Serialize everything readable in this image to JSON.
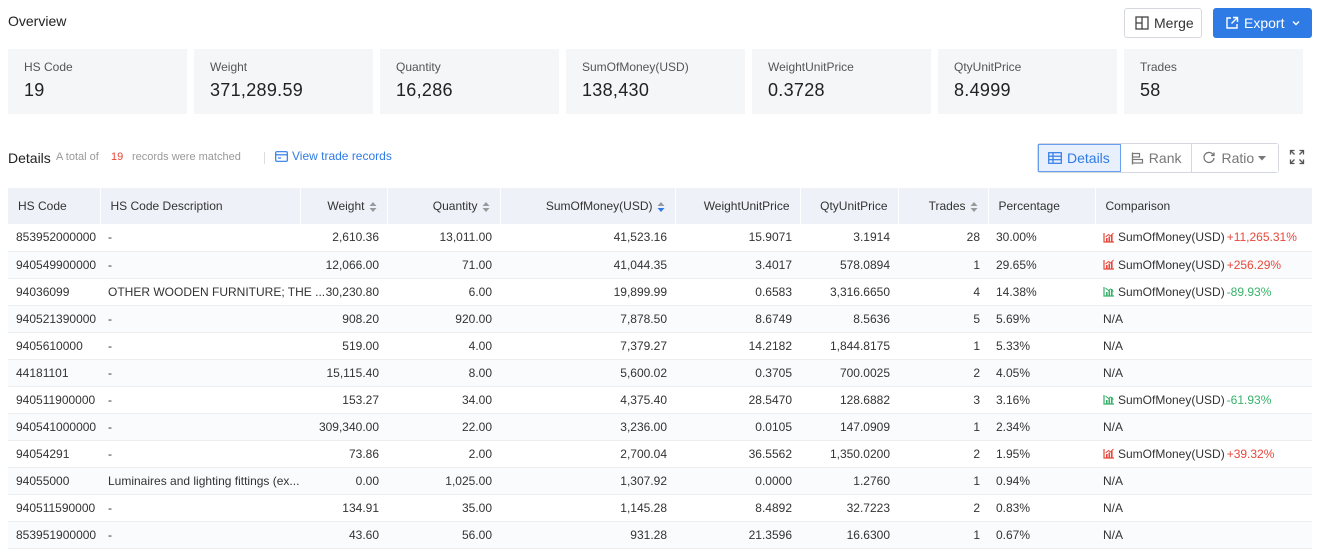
{
  "header": {
    "title": "Overview",
    "merge_label": "Merge",
    "export_label": "Export"
  },
  "stats": [
    {
      "label": "HS Code",
      "value": "19"
    },
    {
      "label": "Weight",
      "value": "371,289.59"
    },
    {
      "label": "Quantity",
      "value": "16,286"
    },
    {
      "label": "SumOfMoney(USD)",
      "value": "138,430"
    },
    {
      "label": "WeightUnitPrice",
      "value": "0.3728"
    },
    {
      "label": "QtyUnitPrice",
      "value": "8.4999"
    },
    {
      "label": "Trades",
      "value": "58"
    }
  ],
  "details": {
    "title": "Details",
    "total_prefix": "A total of",
    "count": "19",
    "total_suffix": "records were matched",
    "view_link": "View trade records",
    "views": [
      "Details",
      "Rank",
      "Ratio"
    ],
    "active_view": "Details"
  },
  "colors": {
    "accent": "#2f7be5",
    "up": "#e8473a",
    "down": "#38b26a",
    "header_bg": "#eef1f7"
  },
  "table": {
    "columns": [
      "HS Code",
      "HS Code Description",
      "Weight",
      "Quantity",
      "SumOfMoney(USD)",
      "WeightUnitPrice",
      "QtyUnitPrice",
      "Trades",
      "Percentage",
      "Comparison"
    ],
    "rows": [
      [
        "853952000000",
        "-",
        "2,610.36",
        "13,011.00",
        "41,523.16",
        "15.9071",
        "3.1914",
        "28",
        "30.00%",
        {
          "label": "SumOfMoney(USD)",
          "change": "+11,265.31%",
          "dir": "up"
        }
      ],
      [
        "940549900000",
        "-",
        "12,066.00",
        "71.00",
        "41,044.35",
        "3.4017",
        "578.0894",
        "1",
        "29.65%",
        {
          "label": "SumOfMoney(USD)",
          "change": "+256.29%",
          "dir": "up"
        }
      ],
      [
        "94036099",
        "OTHER WOODEN FURNITURE; THE ...",
        "30,230.80",
        "6.00",
        "19,899.99",
        "0.6583",
        "3,316.6650",
        "4",
        "14.38%",
        {
          "label": "SumOfMoney(USD)",
          "change": "-89.93%",
          "dir": "down"
        }
      ],
      [
        "940521390000",
        "-",
        "908.20",
        "920.00",
        "7,878.50",
        "8.6749",
        "8.5636",
        "5",
        "5.69%",
        "N/A"
      ],
      [
        "9405610000",
        "-",
        "519.00",
        "4.00",
        "7,379.27",
        "14.2182",
        "1,844.8175",
        "1",
        "5.33%",
        "N/A"
      ],
      [
        "44181101",
        "-",
        "15,115.40",
        "8.00",
        "5,600.02",
        "0.3705",
        "700.0025",
        "2",
        "4.05%",
        "N/A"
      ],
      [
        "940511900000",
        "-",
        "153.27",
        "34.00",
        "4,375.40",
        "28.5470",
        "128.6882",
        "3",
        "3.16%",
        {
          "label": "SumOfMoney(USD)",
          "change": "-61.93%",
          "dir": "down"
        }
      ],
      [
        "940541000000",
        "-",
        "309,340.00",
        "22.00",
        "3,236.00",
        "0.0105",
        "147.0909",
        "1",
        "2.34%",
        "N/A"
      ],
      [
        "94054291",
        "-",
        "73.86",
        "2.00",
        "2,700.04",
        "36.5562",
        "1,350.0200",
        "2",
        "1.95%",
        {
          "label": "SumOfMoney(USD)",
          "change": "+39.32%",
          "dir": "up"
        }
      ],
      [
        "94055000",
        "Luminaires and lighting fittings (ex...",
        "0.00",
        "1,025.00",
        "1,307.92",
        "0.0000",
        "1.2760",
        "1",
        "0.94%",
        "N/A"
      ],
      [
        "940511590000",
        "-",
        "134.91",
        "35.00",
        "1,145.28",
        "8.4892",
        "32.7223",
        "2",
        "0.83%",
        "N/A"
      ],
      [
        "853951900000",
        "-",
        "43.60",
        "56.00",
        "931.28",
        "21.3596",
        "16.6300",
        "1",
        "0.67%",
        "N/A"
      ]
    ]
  }
}
